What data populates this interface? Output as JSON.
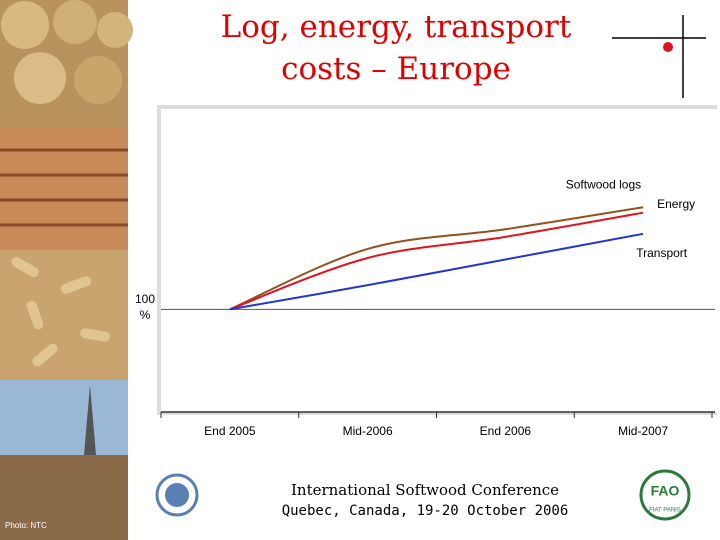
{
  "chart_data": {
    "type": "line",
    "title": "Log, energy, transport costs – Europe",
    "categories": [
      "End 2005",
      "Mid-2006",
      "End 2006",
      "Mid-2007"
    ],
    "series": [
      {
        "name": "Softwood logs",
        "color": "#96501e",
        "values": [
          100,
          120,
          126.5,
          133.8
        ]
      },
      {
        "name": "Energy",
        "color": "#e0141e",
        "values": [
          100,
          117,
          124,
          132
        ]
      },
      {
        "name": "Transport",
        "color": "#2335d2",
        "values": [
          100,
          108,
          116.5,
          125
        ]
      }
    ],
    "ylim": [
      66,
      166
    ],
    "yticks": [
      {
        "value": 100,
        "label": "100 %"
      }
    ]
  },
  "footer": {
    "conference": "International Softwood Conference",
    "place": "Quebec, Canada, 19-20 October 2006",
    "credit": "Photo: NTC"
  },
  "logo": {
    "name": "FAO",
    "motto": "FIAT PANIS"
  }
}
